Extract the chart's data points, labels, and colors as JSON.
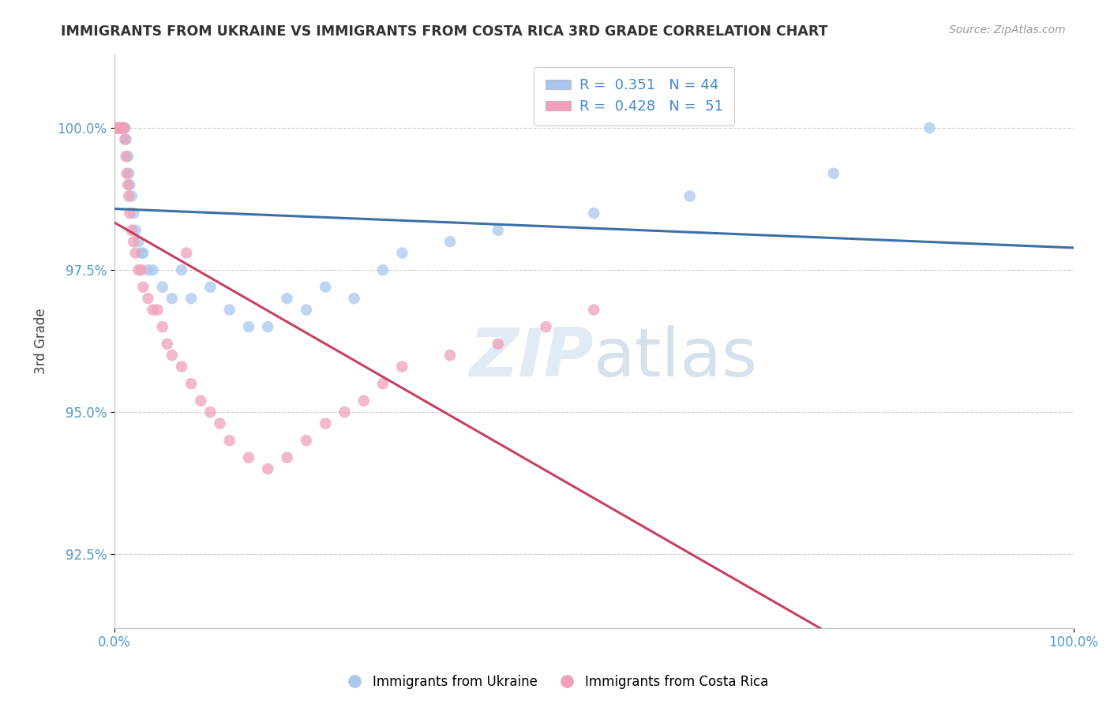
{
  "title": "IMMIGRANTS FROM UKRAINE VS IMMIGRANTS FROM COSTA RICA 3RD GRADE CORRELATION CHART",
  "source": "Source: ZipAtlas.com",
  "ylabel": "3rd Grade",
  "y_ticks": [
    92.5,
    95.0,
    97.5,
    100.0
  ],
  "y_tick_labels": [
    "92.5%",
    "95.0%",
    "97.5%",
    "100.0%"
  ],
  "x_range": [
    0.0,
    100.0
  ],
  "y_range": [
    91.2,
    101.3
  ],
  "legend_blue_r": "R =  0.351",
  "legend_blue_n": "N = 44",
  "legend_pink_r": "R =  0.428",
  "legend_pink_n": "N =  51",
  "blue_color": "#A8C8F0",
  "pink_color": "#F0A0B8",
  "blue_line_color": "#3B6FA8",
  "pink_line_color": "#C84060",
  "ukraine_label": "Immigrants from Ukraine",
  "costarica_label": "Immigrants from Costa Rica",
  "ukraine_x": [
    0.15,
    0.2,
    0.25,
    0.3,
    0.4,
    0.5,
    0.6,
    0.7,
    0.8,
    0.9,
    1.0,
    1.1,
    1.2,
    1.4,
    1.5,
    1.6,
    1.8,
    2.0,
    2.2,
    2.5,
    2.8,
    3.0,
    3.5,
    4.0,
    5.0,
    6.0,
    7.0,
    8.0,
    10.0,
    12.0,
    14.0,
    16.0,
    18.0,
    20.0,
    22.0,
    25.0,
    28.0,
    30.0,
    35.0,
    40.0,
    50.0,
    60.0,
    75.0,
    85.0
  ],
  "ukraine_y": [
    100.0,
    100.0,
    100.0,
    100.0,
    100.0,
    100.0,
    100.0,
    100.0,
    100.0,
    100.0,
    100.0,
    100.0,
    99.8,
    99.5,
    99.2,
    99.0,
    98.8,
    98.5,
    98.2,
    98.0,
    97.8,
    97.8,
    97.5,
    97.5,
    97.2,
    97.0,
    97.5,
    97.0,
    97.2,
    96.8,
    96.5,
    96.5,
    97.0,
    96.8,
    97.2,
    97.0,
    97.5,
    97.8,
    98.0,
    98.2,
    98.5,
    98.8,
    99.2,
    100.0
  ],
  "costarica_x": [
    0.1,
    0.15,
    0.2,
    0.25,
    0.3,
    0.35,
    0.4,
    0.5,
    0.6,
    0.7,
    0.8,
    0.9,
    1.0,
    1.1,
    1.2,
    1.3,
    1.4,
    1.5,
    1.6,
    1.8,
    2.0,
    2.2,
    2.5,
    2.8,
    3.0,
    3.5,
    4.0,
    4.5,
    5.0,
    5.5,
    6.0,
    7.0,
    8.0,
    9.0,
    10.0,
    11.0,
    12.0,
    14.0,
    16.0,
    18.0,
    20.0,
    22.0,
    24.0,
    26.0,
    28.0,
    30.0,
    35.0,
    40.0,
    45.0,
    50.0,
    7.5
  ],
  "costarica_y": [
    100.0,
    100.0,
    100.0,
    100.0,
    100.0,
    100.0,
    100.0,
    100.0,
    100.0,
    100.0,
    100.0,
    100.0,
    100.0,
    99.8,
    99.5,
    99.2,
    99.0,
    98.8,
    98.5,
    98.2,
    98.0,
    97.8,
    97.5,
    97.5,
    97.2,
    97.0,
    96.8,
    96.8,
    96.5,
    96.2,
    96.0,
    95.8,
    95.5,
    95.2,
    95.0,
    94.8,
    94.5,
    94.2,
    94.0,
    94.2,
    94.5,
    94.8,
    95.0,
    95.2,
    95.5,
    95.8,
    96.0,
    96.2,
    96.5,
    96.8,
    97.8
  ],
  "watermark_zip": "ZIP",
  "watermark_atlas": "atlas",
  "bg_color": "#FFFFFF"
}
